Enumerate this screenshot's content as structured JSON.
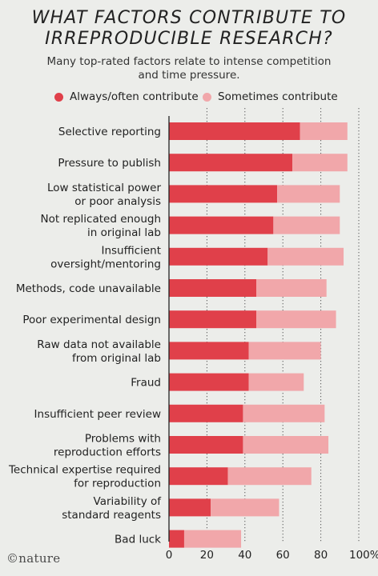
{
  "title_line1": "WHAT FACTORS CONTRIBUTE TO",
  "title_line2": "IRREPRODUCIBLE RESEARCH?",
  "subtitle_line1": "Many top-rated factors relate to intense competition",
  "subtitle_line2": "and time pressure.",
  "logo_text": "©nature",
  "colors": {
    "always": "#e0404a",
    "sometimes": "#f1a7aa",
    "background": "#ecedea"
  },
  "chart_data": {
    "type": "bar",
    "orientation": "horizontal",
    "stacked": true,
    "categories": [
      [
        "Selective reporting"
      ],
      [
        "Pressure to publish"
      ],
      [
        "Low statistical power",
        "or poor analysis"
      ],
      [
        "Not replicated enough",
        "in original lab"
      ],
      [
        "Insufficient",
        "oversight/mentoring"
      ],
      [
        "Methods, code unavailable"
      ],
      [
        "Poor experimental design"
      ],
      [
        "Raw data not available",
        "from original lab"
      ],
      [
        "Fraud"
      ],
      [
        "Insufficient peer review"
      ],
      [
        "Problems with",
        "reproduction efforts"
      ],
      [
        "Technical expertise required",
        "for reproduction"
      ],
      [
        "Variability of",
        "standard reagents"
      ],
      [
        "Bad luck"
      ]
    ],
    "series": [
      {
        "name": "Always/often contribute",
        "values": [
          69,
          65,
          57,
          55,
          52,
          46,
          46,
          42,
          42,
          39,
          39,
          31,
          22,
          8
        ]
      },
      {
        "name": "Sometimes contribute",
        "values": [
          25,
          29,
          33,
          35,
          40,
          37,
          42,
          38,
          29,
          43,
          45,
          44,
          36,
          30
        ]
      }
    ],
    "xlim": [
      0,
      100
    ],
    "xticks": [
      0,
      20,
      40,
      60,
      80,
      100
    ],
    "xtick_labels": [
      "0",
      "20",
      "40",
      "60",
      "80",
      "100%"
    ],
    "grid": "dotted vertical",
    "legend": "top"
  }
}
